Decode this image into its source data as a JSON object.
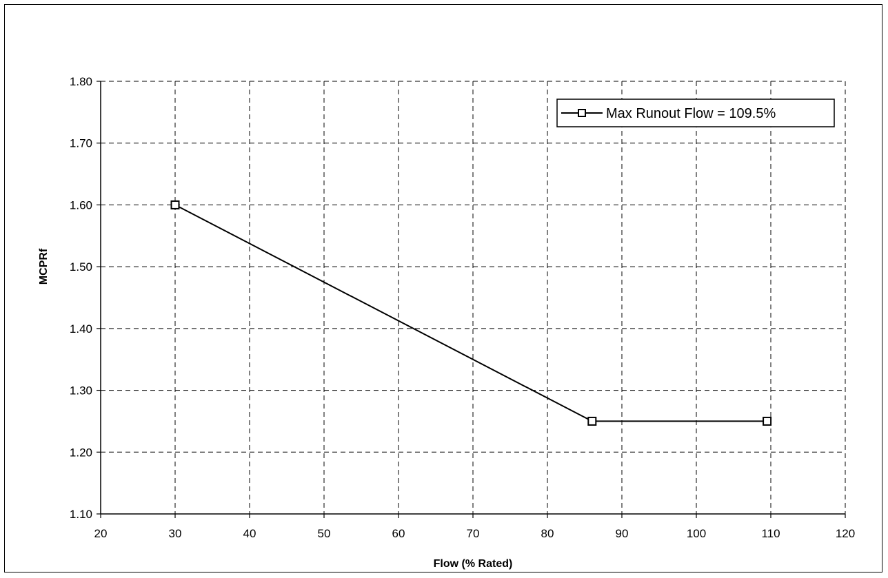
{
  "chart_data": {
    "type": "line",
    "title": "",
    "xlabel": "Flow (% Rated)",
    "ylabel": "MCPRf",
    "xlim": [
      20,
      120
    ],
    "ylim": [
      1.1,
      1.8
    ],
    "x_ticks": [
      "20",
      "30",
      "40",
      "50",
      "60",
      "70",
      "80",
      "90",
      "100",
      "110",
      "120"
    ],
    "y_ticks": [
      "1.10",
      "1.20",
      "1.30",
      "1.40",
      "1.50",
      "1.60",
      "1.70",
      "1.80"
    ],
    "grid": true,
    "grid_style": "dashed",
    "legend_position": "top-right",
    "series": [
      {
        "name": "Max Runout Flow = 109.5%",
        "marker": "square",
        "color": "#000000",
        "x": [
          30,
          86,
          109.5
        ],
        "y": [
          1.6,
          1.25,
          1.25
        ]
      }
    ]
  }
}
